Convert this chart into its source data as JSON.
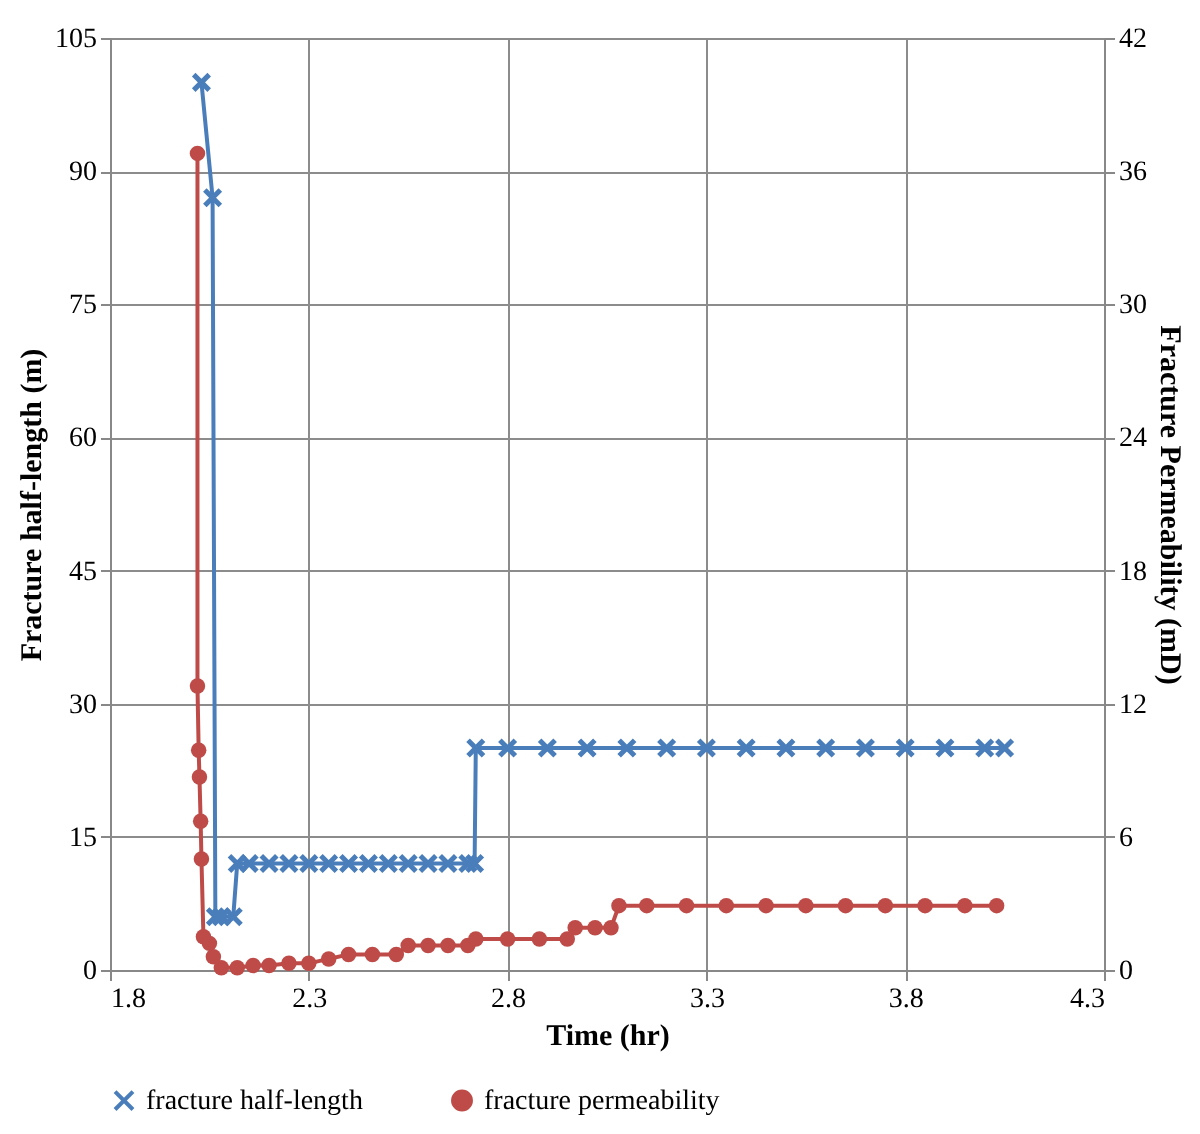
{
  "chart_data": {
    "type": "line",
    "xlabel": "Time (hr)",
    "ylabel": "Fracture half-length (m)",
    "y2label": "Fracture Permeability (mD)",
    "xlim": [
      1.8,
      4.3
    ],
    "xticks": [
      1.8,
      2.3,
      2.8,
      3.3,
      3.8,
      4.3
    ],
    "ylim": [
      0,
      105
    ],
    "yticks": [
      0,
      15,
      30,
      45,
      60,
      75,
      90,
      105
    ],
    "y2lim": [
      0,
      42
    ],
    "y2ticks": [
      0,
      6,
      12,
      18,
      24,
      30,
      36,
      42
    ],
    "grid": true,
    "legend": "bottom",
    "line_style": "solid",
    "series": [
      {
        "name": "fracture half-length",
        "color": "#4a7ebb",
        "marker": "cross",
        "axis": "y",
        "x": [
          2.03,
          2.058,
          2.065,
          2.08,
          2.11,
          2.12,
          2.15,
          2.2,
          2.25,
          2.3,
          2.35,
          2.4,
          2.45,
          2.5,
          2.55,
          2.6,
          2.65,
          2.7,
          2.717,
          2.72,
          2.8,
          2.9,
          3.0,
          3.1,
          3.2,
          3.3,
          3.4,
          3.5,
          3.6,
          3.7,
          3.8,
          3.9,
          4.0,
          4.05
        ],
        "values": [
          100,
          87,
          6,
          6,
          6,
          12,
          12,
          12,
          12,
          12,
          12,
          12,
          12,
          12,
          12,
          12,
          12,
          12,
          12,
          25,
          25,
          25,
          25,
          25,
          25,
          25,
          25,
          25,
          25,
          25,
          25,
          25,
          25,
          25
        ]
      },
      {
        "name": "fracture permeability",
        "color": "#be4b48",
        "marker": "circle",
        "axis": "y2",
        "x": [
          2.02,
          2.02,
          2.023,
          2.025,
          2.028,
          2.03,
          2.035,
          2.05,
          2.06,
          2.08,
          2.12,
          2.16,
          2.2,
          2.25,
          2.3,
          2.35,
          2.4,
          2.46,
          2.52,
          2.55,
          2.6,
          2.65,
          2.7,
          2.72,
          2.8,
          2.88,
          2.95,
          2.97,
          3.02,
          3.06,
          3.08,
          3.15,
          3.25,
          3.35,
          3.45,
          3.55,
          3.65,
          3.75,
          3.85,
          3.95,
          4.03
        ],
        "values": [
          36.8,
          12.8,
          9.9,
          8.7,
          6.7,
          5.0,
          1.5,
          1.2,
          0.6,
          0.1,
          0.1,
          0.2,
          0.2,
          0.3,
          0.3,
          0.5,
          0.7,
          0.7,
          0.7,
          1.1,
          1.1,
          1.1,
          1.1,
          1.4,
          1.4,
          1.4,
          1.4,
          1.9,
          1.9,
          1.9,
          2.9,
          2.9,
          2.9,
          2.9,
          2.9,
          2.9,
          2.9,
          2.9,
          2.9,
          2.9,
          2.9
        ]
      }
    ]
  }
}
